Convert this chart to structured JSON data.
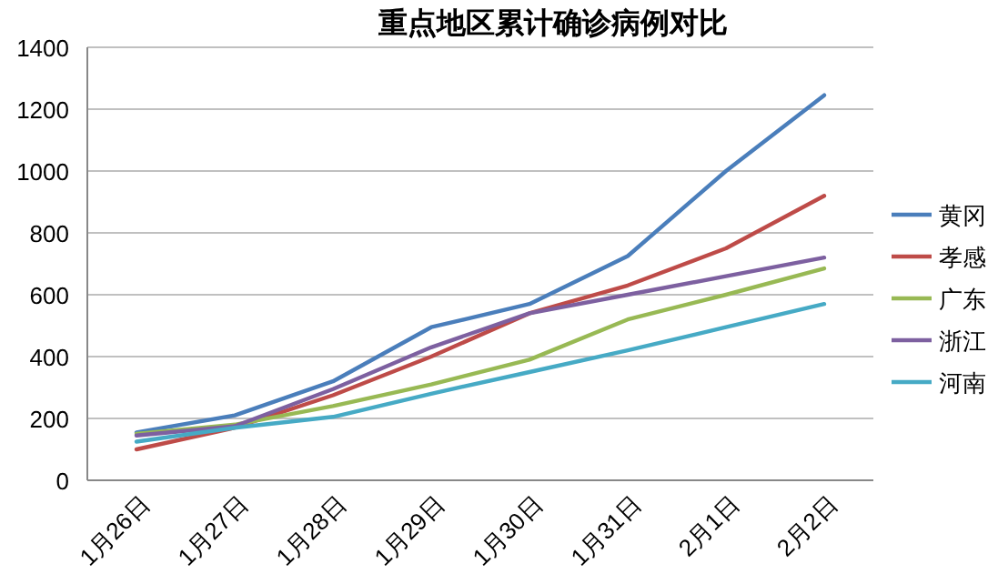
{
  "chart_data": {
    "type": "line",
    "title": "重点地区累计确诊病例对比",
    "categories": [
      "1月26日",
      "1月27日",
      "1月28日",
      "1月29日",
      "1月30日",
      "1月31日",
      "2月1日",
      "2月2日"
    ],
    "series": [
      {
        "name": "黄冈",
        "color": "#4a7ebb",
        "values": [
          155,
          210,
          320,
          495,
          570,
          725,
          1000,
          1245
        ]
      },
      {
        "name": "孝感",
        "color": "#be4b48",
        "values": [
          100,
          170,
          275,
          400,
          540,
          630,
          750,
          920
        ]
      },
      {
        "name": "广东",
        "color": "#98b954",
        "values": [
          150,
          180,
          240,
          310,
          390,
          520,
          600,
          685
        ]
      },
      {
        "name": "浙江",
        "color": "#7d60a0",
        "values": [
          145,
          175,
          295,
          430,
          540,
          600,
          660,
          720
        ]
      },
      {
        "name": "河南",
        "color": "#46aac5",
        "values": [
          125,
          170,
          205,
          280,
          350,
          420,
          495,
          570
        ]
      }
    ],
    "ylim": [
      0,
      1400
    ],
    "yticks": [
      0,
      200,
      400,
      600,
      800,
      1000,
      1200,
      1400
    ],
    "grid": "y",
    "legend": "right",
    "marker": "none",
    "line_style": "solid"
  }
}
